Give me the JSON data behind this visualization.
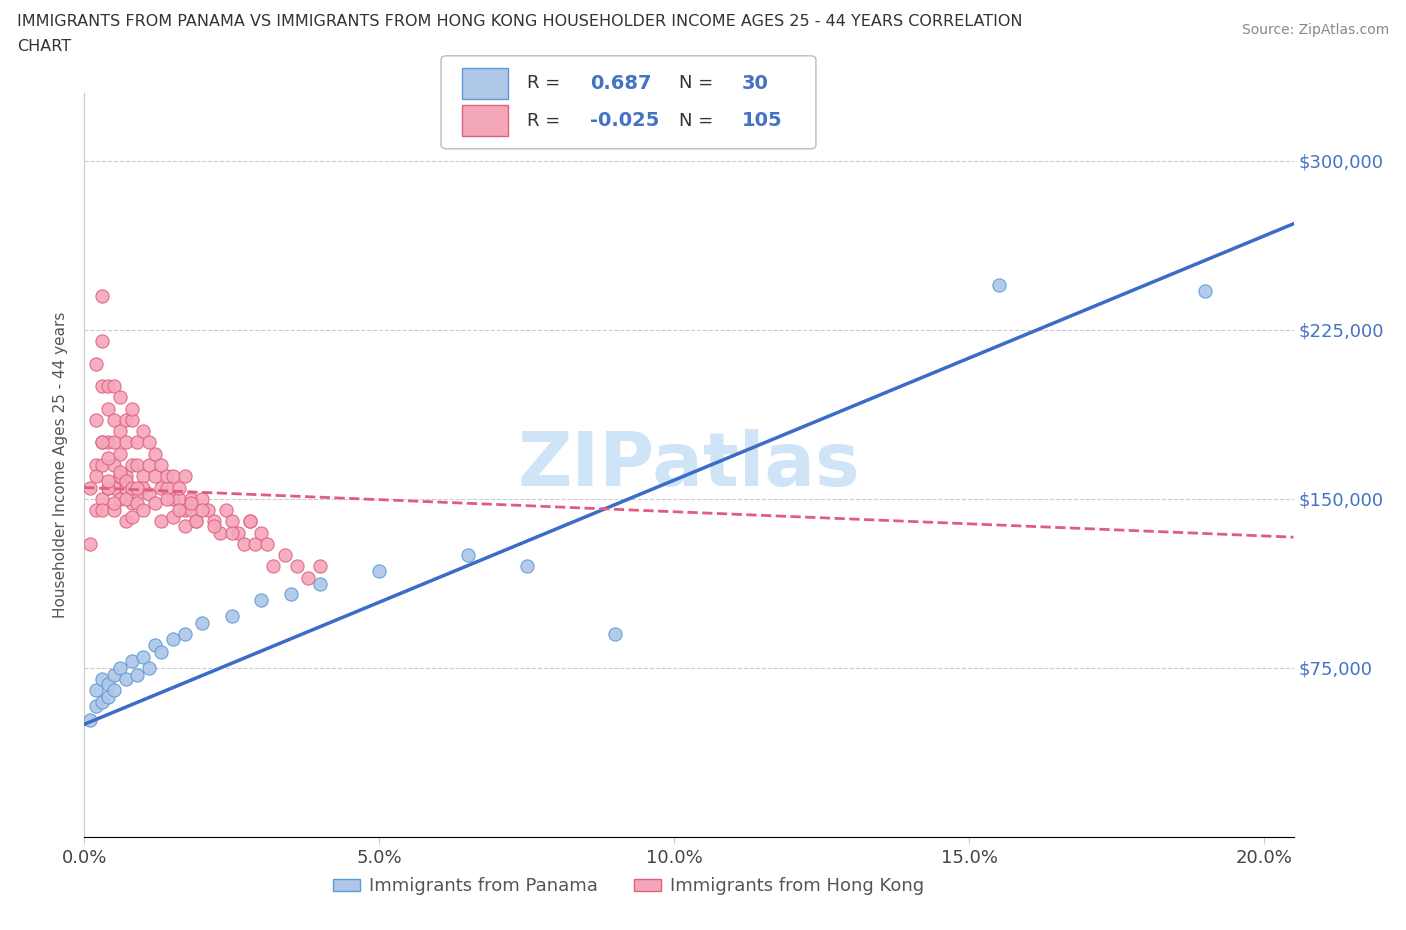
{
  "title_line1": "IMMIGRANTS FROM PANAMA VS IMMIGRANTS FROM HONG KONG HOUSEHOLDER INCOME AGES 25 - 44 YEARS CORRELATION",
  "title_line2": "CHART",
  "source_text": "Source: ZipAtlas.com",
  "ylabel": "Householder Income Ages 25 - 44 years",
  "legend1_label": "Immigrants from Panama",
  "legend2_label": "Immigrants from Hong Kong",
  "R_panama": 0.687,
  "N_panama": 30,
  "R_hongkong": -0.025,
  "N_hongkong": 105,
  "xlim": [
    0.0,
    0.205
  ],
  "ylim": [
    0,
    330000
  ],
  "yticks": [
    0,
    75000,
    150000,
    225000,
    300000
  ],
  "ytick_labels": [
    "",
    "$75,000",
    "$150,000",
    "$225,000",
    "$300,000"
  ],
  "xticks": [
    0.0,
    0.05,
    0.1,
    0.15,
    0.2
  ],
  "xtick_labels": [
    "0.0%",
    "5.0%",
    "10.0%",
    "15.0%",
    "20.0%"
  ],
  "panama_color": "#aec6e8",
  "panama_edge": "#5b9bd5",
  "hongkong_color": "#f4a7b9",
  "hongkong_edge": "#e06080",
  "trendline_panama_color": "#3b6cc7",
  "trendline_hongkong_color": "#e05c80",
  "watermark": "ZIPatlas",
  "watermark_color": "#d0e4f7",
  "panama_x": [
    0.001,
    0.002,
    0.002,
    0.003,
    0.003,
    0.004,
    0.004,
    0.005,
    0.005,
    0.006,
    0.007,
    0.008,
    0.009,
    0.01,
    0.011,
    0.012,
    0.013,
    0.015,
    0.017,
    0.02,
    0.025,
    0.03,
    0.035,
    0.04,
    0.05,
    0.065,
    0.075,
    0.09,
    0.155,
    0.19
  ],
  "panama_y": [
    52000,
    58000,
    65000,
    60000,
    70000,
    68000,
    62000,
    72000,
    65000,
    75000,
    70000,
    78000,
    72000,
    80000,
    75000,
    85000,
    82000,
    88000,
    90000,
    95000,
    98000,
    105000,
    108000,
    112000,
    118000,
    125000,
    120000,
    90000,
    245000,
    242000
  ],
  "hongkong_x": [
    0.001,
    0.001,
    0.002,
    0.002,
    0.002,
    0.002,
    0.003,
    0.003,
    0.003,
    0.003,
    0.003,
    0.004,
    0.004,
    0.004,
    0.004,
    0.005,
    0.005,
    0.005,
    0.005,
    0.006,
    0.006,
    0.006,
    0.006,
    0.007,
    0.007,
    0.007,
    0.008,
    0.008,
    0.008,
    0.009,
    0.009,
    0.01,
    0.01,
    0.01,
    0.011,
    0.011,
    0.012,
    0.012,
    0.013,
    0.013,
    0.014,
    0.014,
    0.015,
    0.015,
    0.016,
    0.016,
    0.017,
    0.017,
    0.018,
    0.018,
    0.019,
    0.02,
    0.021,
    0.022,
    0.023,
    0.024,
    0.025,
    0.026,
    0.027,
    0.028,
    0.029,
    0.03,
    0.031,
    0.032,
    0.034,
    0.036,
    0.038,
    0.04,
    0.002,
    0.003,
    0.003,
    0.004,
    0.005,
    0.005,
    0.006,
    0.006,
    0.007,
    0.007,
    0.008,
    0.009,
    0.003,
    0.004,
    0.004,
    0.005,
    0.006,
    0.007,
    0.007,
    0.008,
    0.008,
    0.009,
    0.009,
    0.01,
    0.011,
    0.012,
    0.013,
    0.014,
    0.015,
    0.016,
    0.017,
    0.018,
    0.019,
    0.02,
    0.022,
    0.025,
    0.028
  ],
  "hongkong_y": [
    130000,
    155000,
    145000,
    165000,
    185000,
    210000,
    150000,
    175000,
    200000,
    220000,
    240000,
    155000,
    175000,
    200000,
    190000,
    155000,
    175000,
    200000,
    185000,
    160000,
    180000,
    195000,
    170000,
    160000,
    185000,
    175000,
    165000,
    185000,
    190000,
    165000,
    175000,
    160000,
    180000,
    155000,
    165000,
    175000,
    160000,
    170000,
    155000,
    165000,
    155000,
    160000,
    150000,
    160000,
    150000,
    155000,
    145000,
    160000,
    150000,
    145000,
    140000,
    150000,
    145000,
    140000,
    135000,
    145000,
    140000,
    135000,
    130000,
    140000,
    130000,
    135000,
    130000,
    120000,
    125000,
    120000,
    115000,
    120000,
    160000,
    145000,
    165000,
    155000,
    145000,
    165000,
    150000,
    160000,
    140000,
    155000,
    148000,
    152000,
    175000,
    158000,
    168000,
    148000,
    162000,
    150000,
    158000,
    142000,
    155000,
    148000,
    155000,
    145000,
    152000,
    148000,
    140000,
    150000,
    142000,
    145000,
    138000,
    148000,
    140000,
    145000,
    138000,
    135000,
    140000
  ]
}
